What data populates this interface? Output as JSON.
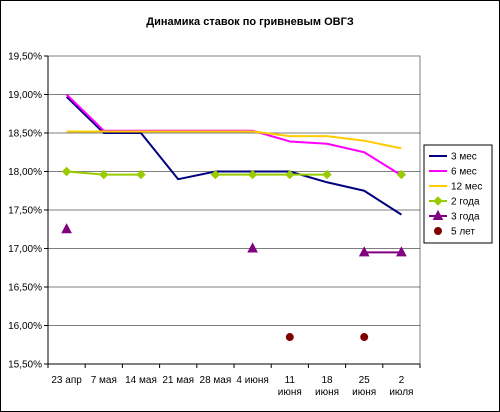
{
  "chart_data": {
    "type": "line",
    "title": "Динамика ставок по гривневым ОВГЗ",
    "categories": [
      "23 апр",
      "7 мая",
      "14 мая",
      "21 мая",
      "28 мая",
      "4 июня",
      "11 июня",
      "18 июня",
      "25 июня",
      "2 июля"
    ],
    "ylim": [
      15.5,
      19.5
    ],
    "yticks": [
      "15,50%",
      "16,00%",
      "16,50%",
      "17,00%",
      "17,50%",
      "18,00%",
      "18,50%",
      "19,00%",
      "19,50%"
    ],
    "grid": true,
    "legend_position": "right",
    "series": [
      {
        "name": "3 мес",
        "color": "#000080",
        "marker": "none",
        "line": true,
        "values": [
          18.97,
          18.5,
          18.5,
          17.9,
          18.0,
          18.0,
          18.0,
          17.86,
          17.75,
          17.44
        ]
      },
      {
        "name": "6 мес",
        "color": "#FF00FF",
        "marker": "none",
        "line": true,
        "values": [
          19.0,
          18.53,
          18.53,
          18.53,
          18.53,
          18.53,
          18.39,
          18.36,
          18.25,
          17.95
        ]
      },
      {
        "name": "12 мес",
        "color": "#FFCC00",
        "marker": "none",
        "line": true,
        "values": [
          18.52,
          18.52,
          18.52,
          18.52,
          18.52,
          18.52,
          18.46,
          18.46,
          18.4,
          18.3
        ]
      },
      {
        "name": "2 года",
        "color": "#99CC00",
        "marker": "diamond",
        "line": true,
        "values": [
          18.0,
          17.96,
          17.96,
          null,
          17.96,
          17.96,
          17.96,
          17.96,
          null,
          17.96
        ]
      },
      {
        "name": "3 года",
        "color": "#800080",
        "marker": "triangle",
        "line": true,
        "values": [
          17.25,
          null,
          null,
          null,
          null,
          17.0,
          null,
          null,
          16.95,
          16.95
        ]
      },
      {
        "name": "5 лет",
        "color": "#800000",
        "marker": "circle",
        "line": false,
        "values": [
          null,
          null,
          null,
          null,
          null,
          null,
          15.85,
          null,
          15.85,
          null
        ]
      }
    ]
  }
}
